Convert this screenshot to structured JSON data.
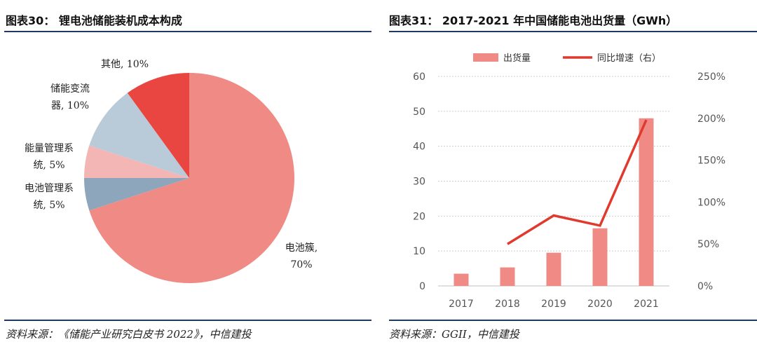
{
  "left": {
    "title": "图表30： 锂电池储能装机成本构成",
    "source": "资料来源：《储能产业研究白皮书 2022》，中信建投"
  },
  "right": {
    "title": "图表31： 2017-2021 年中国储能电池出货量（GWh）",
    "source": "资料来源：GGII，中信建投"
  },
  "chart_data": [
    {
      "type": "pie",
      "slices": [
        {
          "label_lines": [
            "电池簇,",
            "70%"
          ],
          "value": 70,
          "color": "#ef8a85"
        },
        {
          "label_lines": [
            "电池管理系",
            "统, 5%"
          ],
          "value": 5,
          "color": "#8ea6bb"
        },
        {
          "label_lines": [
            "能量管理系",
            "统, 5%"
          ],
          "value": 5,
          "color": "#f4b6b4"
        },
        {
          "label_lines": [
            "储能变流",
            "器, 10%"
          ],
          "value": 10,
          "color": "#b9cbd8"
        },
        {
          "label_lines": [
            "其他, 10%"
          ],
          "value": 10,
          "color": "#ea4641"
        }
      ]
    },
    {
      "type": "bar",
      "categories": [
        "2017",
        "2018",
        "2019",
        "2020",
        "2021"
      ],
      "series": [
        {
          "name": "出货量",
          "kind": "bar",
          "axis": "left",
          "color": "#ef8a85",
          "values": [
            3.5,
            5.3,
            9.5,
            16.5,
            48
          ]
        },
        {
          "name": "同比增速（右）",
          "kind": "line",
          "axis": "right",
          "color": "#e03a2f",
          "values": [
            null,
            50,
            84,
            72,
            198
          ]
        }
      ],
      "ylim": [
        0,
        60
      ],
      "yticks": [
        "0",
        "10",
        "20",
        "30",
        "40",
        "50",
        "60"
      ],
      "y2lim": [
        0,
        250
      ],
      "y2ticks": [
        "0%",
        "50%",
        "100%",
        "150%",
        "200%",
        "250%"
      ],
      "grid": true,
      "legend": "top"
    }
  ]
}
